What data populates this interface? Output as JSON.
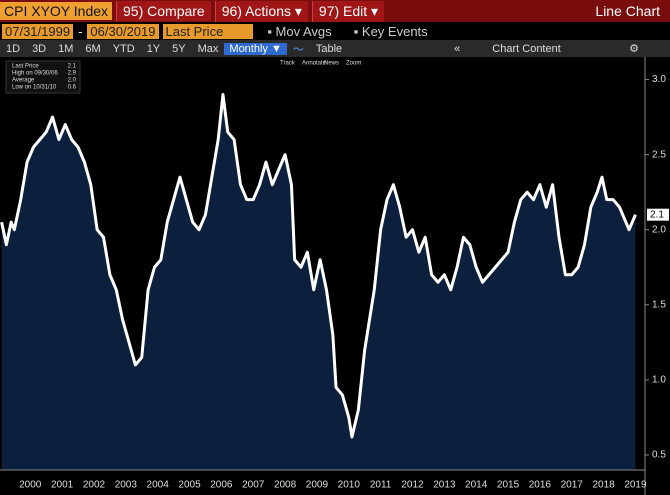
{
  "toolbar": {
    "security": "CPI XYOY Index",
    "compare": "95) Compare",
    "actions": "96) Actions ▾",
    "edit": "97) Edit ▾",
    "view": "Line Chart",
    "start_date": "07/31/1999",
    "date_sep": "-",
    "end_date": "06/30/2019",
    "field": "Last Price",
    "mov_avgs": "Mov Avgs",
    "key_events": "Key Events",
    "ranges": [
      "1D",
      "3D",
      "1M",
      "6M",
      "YTD",
      "1Y",
      "5Y",
      "Max"
    ],
    "period": "Monthly ▼",
    "table": "Table",
    "chart_content": "Chart Content",
    "tools": [
      "Track",
      "Annotate",
      "News",
      "Zoom"
    ]
  },
  "chart_data": {
    "type": "line",
    "legend": [
      {
        "label": "Last Price",
        "value": "2.1"
      },
      {
        "label": "High on 09/30/06",
        "value": "2.9"
      },
      {
        "label": "Average",
        "value": "2.0"
      },
      {
        "label": "Low on 10/31/10",
        "value": "0.6"
      }
    ],
    "last_label": "2.1",
    "x": [
      1999.6,
      1999.75,
      1999.9,
      2000.0,
      2000.2,
      2000.4,
      2000.6,
      2000.8,
      2001.0,
      2001.2,
      2001.4,
      2001.6,
      2001.8,
      2002.0,
      2002.2,
      2002.4,
      2002.6,
      2002.8,
      2003.0,
      2003.2,
      2003.4,
      2003.6,
      2003.8,
      2004.0,
      2004.2,
      2004.4,
      2004.6,
      2004.8,
      2005.0,
      2005.2,
      2005.4,
      2005.6,
      2005.8,
      2006.0,
      2006.2,
      2006.4,
      2006.55,
      2006.7,
      2006.9,
      2007.1,
      2007.3,
      2007.5,
      2007.7,
      2007.9,
      2008.1,
      2008.3,
      2008.5,
      2008.7,
      2008.8,
      2009.0,
      2009.2,
      2009.4,
      2009.6,
      2009.8,
      2010.0,
      2010.1,
      2010.3,
      2010.5,
      2010.6,
      2010.8,
      2011.0,
      2011.3,
      2011.5,
      2011.7,
      2011.9,
      2012.1,
      2012.3,
      2012.5,
      2012.7,
      2012.9,
      2013.1,
      2013.3,
      2013.5,
      2013.7,
      2013.9,
      2014.1,
      2014.3,
      2014.5,
      2014.7,
      2014.9,
      2015.1,
      2015.3,
      2015.5,
      2015.7,
      2015.9,
      2016.1,
      2016.3,
      2016.5,
      2016.7,
      2016.9,
      2017.1,
      2017.3,
      2017.5,
      2017.7,
      2017.9,
      2018.1,
      2018.3,
      2018.45,
      2018.6,
      2018.8,
      2019.0,
      2019.2,
      2019.3,
      2019.5
    ],
    "series": [
      {
        "name": "Last Price",
        "color": "#ffffff",
        "fill": "#0c1f3c",
        "values": [
          2.05,
          1.9,
          2.05,
          2.0,
          2.2,
          2.45,
          2.55,
          2.6,
          2.65,
          2.75,
          2.6,
          2.7,
          2.6,
          2.55,
          2.45,
          2.3,
          2.0,
          1.95,
          1.7,
          1.6,
          1.4,
          1.25,
          1.1,
          1.15,
          1.6,
          1.75,
          1.8,
          2.05,
          2.2,
          2.35,
          2.2,
          2.05,
          2.0,
          2.1,
          2.35,
          2.6,
          2.9,
          2.65,
          2.6,
          2.3,
          2.2,
          2.2,
          2.3,
          2.45,
          2.3,
          2.4,
          2.5,
          2.3,
          1.8,
          1.75,
          1.85,
          1.6,
          1.8,
          1.6,
          1.3,
          0.95,
          0.9,
          0.75,
          0.62,
          0.8,
          1.2,
          1.6,
          2.0,
          2.2,
          2.3,
          2.15,
          1.95,
          2.0,
          1.85,
          1.95,
          1.7,
          1.65,
          1.7,
          1.6,
          1.75,
          1.95,
          1.9,
          1.75,
          1.65,
          1.7,
          1.75,
          1.8,
          1.85,
          2.05,
          2.2,
          2.25,
          2.2,
          2.3,
          2.15,
          2.3,
          1.95,
          1.7,
          1.7,
          1.75,
          1.9,
          2.15,
          2.25,
          2.35,
          2.2,
          2.2,
          2.15,
          2.05,
          2.0,
          2.1
        ]
      }
    ],
    "xlim": [
      1999.55,
      2019.8
    ],
    "xticks": [
      {
        "value": 2000.5,
        "label": "2000"
      },
      {
        "value": 2001.5,
        "label": "2001"
      },
      {
        "value": 2002.5,
        "label": "2002"
      },
      {
        "value": 2003.5,
        "label": "2003"
      },
      {
        "value": 2004.5,
        "label": "2004"
      },
      {
        "value": 2005.5,
        "label": "2005"
      },
      {
        "value": 2006.5,
        "label": "2006"
      },
      {
        "value": 2007.5,
        "label": "2007"
      },
      {
        "value": 2008.5,
        "label": "2008"
      },
      {
        "value": 2009.5,
        "label": "2009"
      },
      {
        "value": 2010.5,
        "label": "2010"
      },
      {
        "value": 2011.5,
        "label": "2011"
      },
      {
        "value": 2012.5,
        "label": "2012"
      },
      {
        "value": 2013.5,
        "label": "2013"
      },
      {
        "value": 2014.5,
        "label": "2014"
      },
      {
        "value": 2015.5,
        "label": "2015"
      },
      {
        "value": 2016.5,
        "label": "2016"
      },
      {
        "value": 2017.5,
        "label": "2017"
      },
      {
        "value": 2018.5,
        "label": "2018"
      },
      {
        "value": 2019.5,
        "label": "2019"
      }
    ],
    "ylim": [
      0.4,
      3.15
    ],
    "yticks": [
      0.5,
      {
        "value": 1,
        "label": "1.0"
      },
      1.5,
      {
        "value": 2,
        "label": "2.0"
      },
      2.5,
      {
        "value": 3,
        "label": "3.0"
      }
    ],
    "grid": false
  }
}
